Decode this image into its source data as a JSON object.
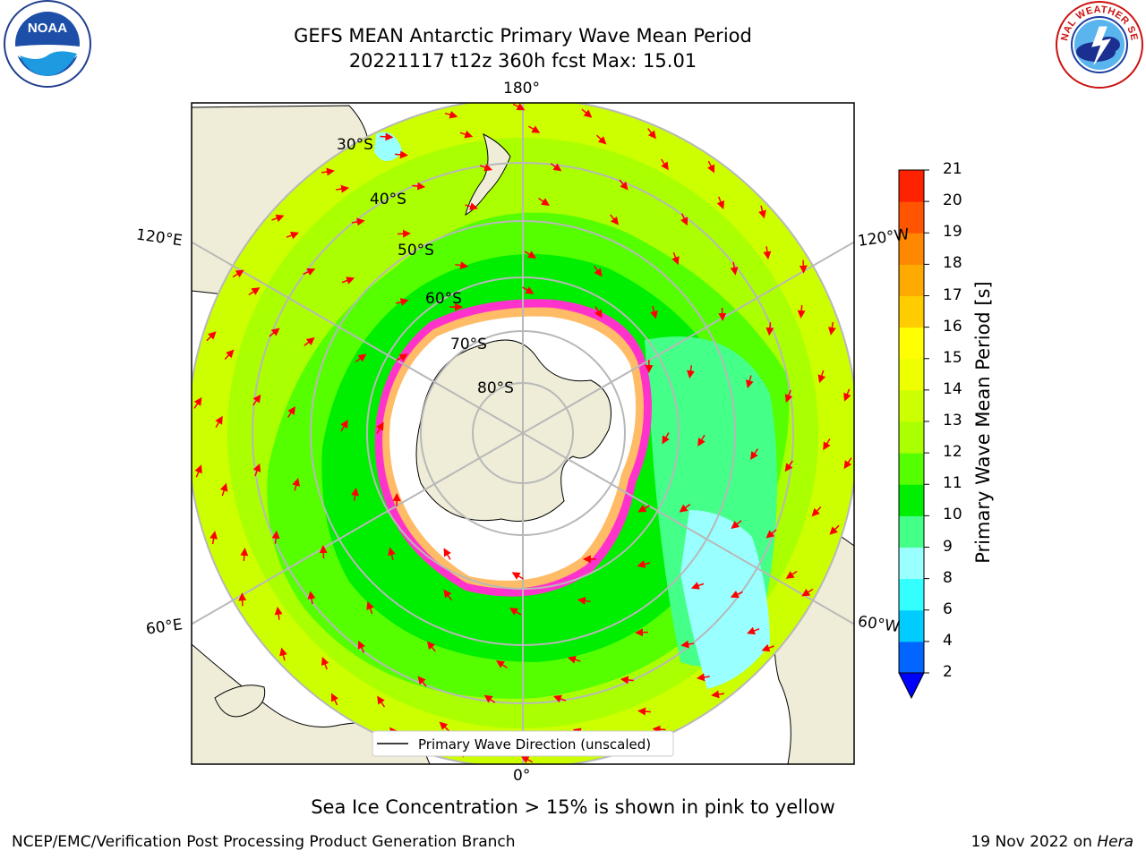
{
  "title": {
    "line1": "GEFS MEAN Antarctic Primary Wave Mean Period",
    "line2": "20221117 t12z 360h fcst   Max: 15.01"
  },
  "logos": {
    "noaa": {
      "icon": "noaa-logo-icon",
      "text": "NOAA"
    },
    "nws": {
      "icon": "nws-logo-icon",
      "text": "NATIONAL WEATHER SERVICE"
    }
  },
  "map": {
    "projection": "south-polar-stereographic",
    "lon_labels": {
      "top": "180°",
      "bottom": "0°",
      "upper_left": "120°E",
      "lower_left": "60°E",
      "upper_right": "120°W",
      "lower_right": "60°W"
    },
    "lat_labels": [
      "30°S",
      "40°S",
      "50°S",
      "60°S",
      "70°S",
      "80°S"
    ],
    "legend": "Primary Wave Direction (unscaled)",
    "arrow_color": "#ff0000",
    "land_color": "#efedd8",
    "ice_color": "#ffffff"
  },
  "colorbar": {
    "label": "Primary Wave Mean Period [s]",
    "ticks": [
      "2",
      "4",
      "6",
      "8",
      "9",
      "10",
      "11",
      "12",
      "13",
      "14",
      "15",
      "16",
      "17",
      "18",
      "19",
      "20",
      "21"
    ],
    "colors": [
      "#0066ff",
      "#00ccff",
      "#33ffff",
      "#99ffff",
      "#44ff88",
      "#00ee00",
      "#55ff00",
      "#aaff00",
      "#ccff00",
      "#eeff00",
      "#ffff00",
      "#ffcc00",
      "#ffaa00",
      "#ff8800",
      "#ff5500",
      "#ff2200"
    ],
    "under_color": "#0000ff"
  },
  "caption": "Sea Ice Concentration > 15% is shown in pink to yellow",
  "footer": {
    "left": "NCEP/EMC/Verification Post Processing Product Generation Branch",
    "right_date": "19 Nov 2022 on ",
    "right_host": "Hera"
  }
}
